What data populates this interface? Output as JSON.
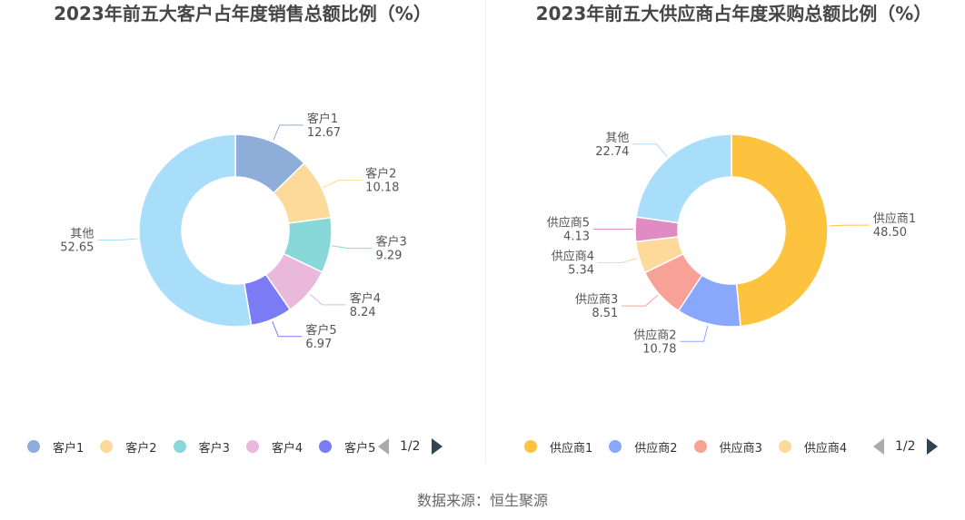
{
  "source": "数据来源：恒生聚源",
  "charts": [
    {
      "title": "2023年前五大客户占年度销售总额比例（%）",
      "pager": "1/2",
      "legend": [
        {
          "name": "客户1",
          "color": "#8eaed9"
        },
        {
          "name": "客户2",
          "color": "#fdd99a"
        },
        {
          "name": "客户3",
          "color": "#88d8da"
        },
        {
          "name": "客户4",
          "color": "#e9b8da"
        },
        {
          "name": "客户5",
          "color": "#7b7bf5"
        }
      ]
    },
    {
      "title": "2023年前五大供应商占年度采购总额比例（%）",
      "pager": "1/2",
      "legend": [
        {
          "name": "供应商1",
          "color": "#fdc33f"
        },
        {
          "name": "供应商2",
          "color": "#8aa8fb"
        },
        {
          "name": "供应商3",
          "color": "#f8a196"
        },
        {
          "name": "供应商4",
          "color": "#fdd99a"
        }
      ]
    }
  ],
  "chart_data": [
    {
      "type": "pie",
      "title": "2023年前五大客户占年度销售总额比例（%）",
      "categories": [
        "客户1",
        "客户2",
        "客户3",
        "客户4",
        "客户5",
        "其他"
      ],
      "values": [
        12.67,
        10.18,
        9.29,
        8.24,
        6.97,
        52.65
      ],
      "colors": [
        "#8eaed9",
        "#fdd99a",
        "#88d8da",
        "#e9b8da",
        "#7b7bf5",
        "#a8defa"
      ],
      "legend": "bottom"
    },
    {
      "type": "pie",
      "title": "2023年前五大供应商占年度采购总额比例（%）",
      "categories": [
        "供应商1",
        "供应商2",
        "供应商3",
        "供应商4",
        "供应商5",
        "其他"
      ],
      "values": [
        48.5,
        10.78,
        8.51,
        5.34,
        4.13,
        22.74
      ],
      "colors": [
        "#fdc33f",
        "#8aa8fb",
        "#f8a196",
        "#fdd99a",
        "#e08bc2",
        "#a8defa"
      ],
      "legend": "bottom"
    }
  ]
}
